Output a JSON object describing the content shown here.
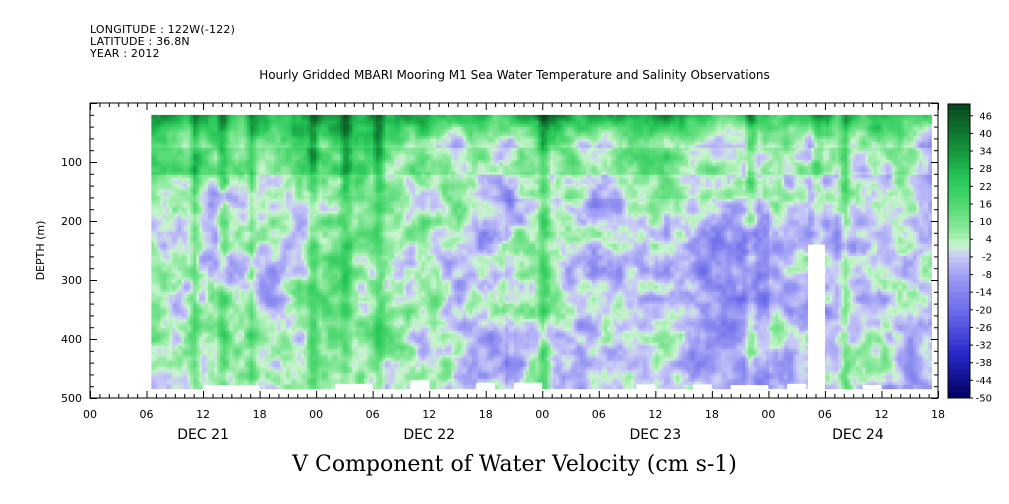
{
  "header": {
    "longitude": "LONGITUDE : 122W(-122)",
    "latitude": "LATITUDE : 36.8N",
    "year": "YEAR : 2012"
  },
  "title": "Hourly Gridded MBARI Mooring M1 Sea Water Temperature and Salinity Observations",
  "bottom_label": "V Component of Water Velocity (cm s-1)",
  "chart_data": {
    "type": "heatmap",
    "title": "Hourly Gridded MBARI Mooring M1 Sea Water Temperature and Salinity Observations",
    "variable": "V Component of Water Velocity (cm s-1)",
    "ylabel": "DEPTH (m)",
    "xlabel": "",
    "x_range_hours": [
      0,
      90
    ],
    "ylim": [
      500,
      0
    ],
    "data_depth_range": [
      20,
      485
    ],
    "data_start_hour": 6.5,
    "y_ticks": [
      100,
      200,
      300,
      400,
      500
    ],
    "x_ticks": [
      {
        "h": 0,
        "label": "00"
      },
      {
        "h": 6,
        "label": "06"
      },
      {
        "h": 12,
        "label": "12"
      },
      {
        "h": 18,
        "label": "18"
      },
      {
        "h": 24,
        "label": "00"
      },
      {
        "h": 30,
        "label": "06"
      },
      {
        "h": 36,
        "label": "12"
      },
      {
        "h": 42,
        "label": "18"
      },
      {
        "h": 48,
        "label": "00"
      },
      {
        "h": 54,
        "label": "06"
      },
      {
        "h": 60,
        "label": "12"
      },
      {
        "h": 66,
        "label": "18"
      },
      {
        "h": 72,
        "label": "00"
      },
      {
        "h": 78,
        "label": "06"
      },
      {
        "h": 84,
        "label": "12"
      },
      {
        "h": 90,
        "label": "18"
      }
    ],
    "day_labels": [
      {
        "h": 12,
        "label": "DEC 21"
      },
      {
        "h": 36,
        "label": "DEC 22"
      },
      {
        "h": 60,
        "label": "DEC 23"
      },
      {
        "h": 81.5,
        "label": "DEC 24"
      }
    ],
    "colorbar": {
      "min": -50,
      "max": 50,
      "labels": [
        46,
        40,
        34,
        28,
        22,
        16,
        10,
        4,
        -2,
        -8,
        -14,
        -20,
        -26,
        -32,
        -38,
        -44,
        -50
      ]
    }
  },
  "colors": {
    "strong_positive": "#0a4a1e",
    "positive": "#3cd66a",
    "weak_positive": "#b8f2c0",
    "weak_negative": "#c8c8f8",
    "negative": "#8f8ff0",
    "strong_negative": "#000060"
  }
}
